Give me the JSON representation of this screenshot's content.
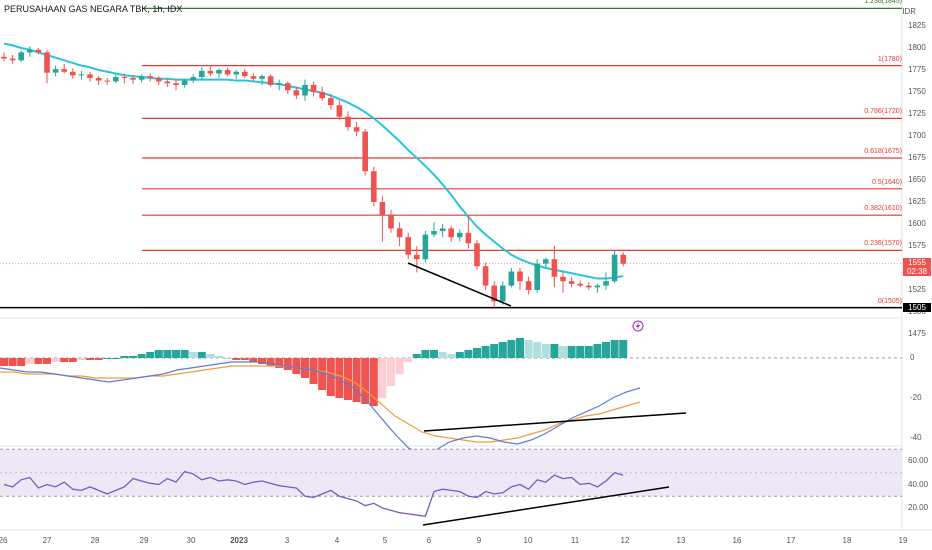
{
  "header": {
    "title": "PERUSAHAAN GAS NEGARA TBK, 1h, IDX"
  },
  "price_axis": {
    "currency": "IDR",
    "ticks": [
      "1825",
      "1800",
      "1775",
      "1750",
      "1725",
      "1700",
      "1675",
      "1650",
      "1625",
      "1600",
      "1575",
      "1550",
      "1525",
      "1500",
      "1475"
    ]
  },
  "fib_levels": [
    {
      "label": "1.236(1845)",
      "price": 1845
    },
    {
      "label": "1(1780)",
      "price": 1780
    },
    {
      "label": "0.786(1720)",
      "price": 1720
    },
    {
      "label": "0.618(1675)",
      "price": 1675
    },
    {
      "label": "0.5(1640)",
      "price": 1640
    },
    {
      "label": "0.382(1610)",
      "price": 1610
    },
    {
      "label": "0.236(1570)",
      "price": 1570
    },
    {
      "label": "0(1505)",
      "price": 1505
    }
  ],
  "last_price": {
    "value": "1555",
    "countdown": "02:38",
    "color": "#ef5350"
  },
  "support_tag": "1505",
  "macd_axis": {
    "ticks": [
      "0",
      "-20",
      "-40"
    ]
  },
  "rsi_axis": {
    "ticks": [
      "60.00",
      "40.00",
      "20.00"
    ]
  },
  "time_axis": {
    "ticks": [
      "26",
      "27",
      "28",
      "29",
      "30",
      "2023",
      "3",
      "4",
      "5",
      "6",
      "9",
      "10",
      "11",
      "12",
      "13",
      "16",
      "17",
      "18",
      "19"
    ]
  },
  "colors": {
    "up": "#26a69a",
    "down": "#ef5350",
    "ma": "#26c6da",
    "fib": "#e53935",
    "macd": "#5b7bd5",
    "signal": "#f39c3c",
    "rsi": "#7e57c2",
    "rsi_band": "#ede7f6"
  },
  "icons": {
    "alert": "lightning-icon"
  },
  "chart_data": {
    "type": "candlestick",
    "title": "PERUSAHAAN GAS NEGARA TBK, 1h, IDX",
    "ylim": [
      1470,
      1850
    ],
    "candles": [
      [
        1790,
        1795,
        1785,
        1788
      ],
      [
        1788,
        1792,
        1782,
        1786
      ],
      [
        1786,
        1797,
        1784,
        1795
      ],
      [
        1795,
        1802,
        1790,
        1798
      ],
      [
        1798,
        1800,
        1793,
        1795
      ],
      [
        1795,
        1798,
        1760,
        1772
      ],
      [
        1772,
        1780,
        1768,
        1776
      ],
      [
        1776,
        1782,
        1771,
        1773
      ],
      [
        1773,
        1777,
        1765,
        1769
      ],
      [
        1769,
        1774,
        1764,
        1770
      ],
      [
        1770,
        1773,
        1762,
        1766
      ],
      [
        1766,
        1768,
        1758,
        1763
      ],
      [
        1763,
        1766,
        1758,
        1762
      ],
      [
        1762,
        1770,
        1760,
        1767
      ],
      [
        1767,
        1771,
        1760,
        1766
      ],
      [
        1766,
        1768,
        1759,
        1764
      ],
      [
        1764,
        1770,
        1761,
        1768
      ],
      [
        1768,
        1771,
        1762,
        1766
      ],
      [
        1766,
        1768,
        1758,
        1762
      ],
      [
        1762,
        1765,
        1756,
        1760
      ],
      [
        1760,
        1764,
        1752,
        1758
      ],
      [
        1758,
        1765,
        1755,
        1763
      ],
      [
        1763,
        1770,
        1760,
        1767
      ],
      [
        1767,
        1778,
        1763,
        1774
      ],
      [
        1774,
        1780,
        1768,
        1771
      ],
      [
        1771,
        1777,
        1766,
        1775
      ],
      [
        1775,
        1778,
        1768,
        1770
      ],
      [
        1770,
        1775,
        1765,
        1773
      ],
      [
        1773,
        1776,
        1766,
        1768
      ],
      [
        1768,
        1772,
        1762,
        1765
      ],
      [
        1765,
        1770,
        1758,
        1768
      ],
      [
        1768,
        1770,
        1756,
        1758
      ],
      [
        1758,
        1764,
        1752,
        1760
      ],
      [
        1760,
        1762,
        1748,
        1752
      ],
      [
        1752,
        1756,
        1742,
        1746
      ],
      [
        1746,
        1764,
        1740,
        1758
      ],
      [
        1758,
        1762,
        1745,
        1750
      ],
      [
        1750,
        1756,
        1740,
        1743
      ],
      [
        1743,
        1748,
        1730,
        1735
      ],
      [
        1735,
        1740,
        1718,
        1722
      ],
      [
        1722,
        1728,
        1706,
        1710
      ],
      [
        1710,
        1716,
        1700,
        1705
      ],
      [
        1705,
        1708,
        1655,
        1660
      ],
      [
        1660,
        1665,
        1620,
        1625
      ],
      [
        1625,
        1632,
        1580,
        1610
      ],
      [
        1610,
        1616,
        1590,
        1595
      ],
      [
        1595,
        1602,
        1575,
        1585
      ],
      [
        1585,
        1590,
        1560,
        1565
      ],
      [
        1565,
        1575,
        1545,
        1560
      ],
      [
        1560,
        1592,
        1556,
        1588
      ],
      [
        1588,
        1602,
        1585,
        1592
      ],
      [
        1592,
        1600,
        1585,
        1595
      ],
      [
        1595,
        1598,
        1580,
        1585
      ],
      [
        1585,
        1594,
        1580,
        1590
      ],
      [
        1590,
        1610,
        1572,
        1578
      ],
      [
        1578,
        1582,
        1548,
        1552
      ],
      [
        1552,
        1556,
        1525,
        1530
      ],
      [
        1530,
        1535,
        1505,
        1512
      ],
      [
        1512,
        1535,
        1508,
        1530
      ],
      [
        1530,
        1550,
        1528,
        1546
      ],
      [
        1546,
        1550,
        1525,
        1535
      ],
      [
        1535,
        1540,
        1520,
        1525
      ],
      [
        1525,
        1560,
        1522,
        1555
      ],
      [
        1555,
        1562,
        1550,
        1560
      ],
      [
        1560,
        1575,
        1528,
        1540
      ],
      [
        1540,
        1545,
        1522,
        1535
      ],
      [
        1535,
        1540,
        1528,
        1532
      ],
      [
        1532,
        1536,
        1528,
        1530
      ],
      [
        1530,
        1534,
        1525,
        1528
      ],
      [
        1528,
        1532,
        1522,
        1530
      ],
      [
        1530,
        1545,
        1525,
        1535
      ],
      [
        1535,
        1570,
        1533,
        1565
      ],
      [
        1565,
        1568,
        1552,
        1555
      ]
    ],
    "ma": [
      1805,
      1803,
      1800,
      1798,
      1795,
      1792,
      1789,
      1786,
      1783,
      1780,
      1778,
      1775,
      1773,
      1771,
      1769,
      1768,
      1767,
      1766,
      1765,
      1765,
      1764,
      1764,
      1764,
      1764,
      1764,
      1764,
      1764,
      1763,
      1763,
      1762,
      1761,
      1760,
      1759,
      1757,
      1755,
      1753,
      1751,
      1749,
      1746,
      1742,
      1738,
      1733,
      1727,
      1720,
      1712,
      1703,
      1694,
      1684,
      1675,
      1666,
      1656,
      1645,
      1633,
      1620,
      1608,
      1597,
      1588,
      1580,
      1572,
      1565,
      1560,
      1556,
      1553,
      1550,
      1548,
      1546,
      1544,
      1542,
      1540,
      1538,
      1538,
      1539,
      1541
    ],
    "macd_hist": [
      -4,
      -4,
      -4,
      -3,
      -3,
      -3,
      -2,
      -2,
      -2,
      -1,
      -1,
      -1,
      0,
      0,
      1,
      1,
      2,
      3,
      4,
      4,
      4,
      4,
      3,
      3,
      2,
      1,
      0,
      -1,
      -1,
      -2,
      -3,
      -4,
      -5,
      -6,
      -8,
      -10,
      -13,
      -16,
      -19,
      -20,
      -21,
      -22,
      -23,
      -24,
      -20,
      -14,
      -8,
      -2,
      2,
      4,
      4,
      3,
      2,
      3,
      4,
      5,
      6,
      7,
      8,
      9,
      10,
      9,
      8,
      7,
      7,
      6,
      6,
      6,
      6,
      7,
      8,
      9,
      9
    ],
    "macd_line": [
      -5,
      -6,
      -7,
      -7,
      -8,
      -9,
      -10,
      -11,
      -12,
      -11,
      -10,
      -9,
      -8,
      -6,
      -5,
      -4,
      -3,
      -2,
      -2,
      -2,
      -3,
      -4,
      -5,
      -6,
      -8,
      -11,
      -15,
      -22,
      -30,
      -38,
      -45,
      -48,
      -46,
      -42,
      -40,
      -39,
      -40,
      -42,
      -43,
      -41,
      -38,
      -34,
      -30,
      -27,
      -24,
      -20,
      -17,
      -15
    ],
    "signal_line": [
      -7,
      -7,
      -8,
      -8,
      -8,
      -9,
      -9,
      -10,
      -10,
      -10,
      -10,
      -9,
      -9,
      -8,
      -7,
      -6,
      -5,
      -4,
      -4,
      -4,
      -4,
      -4,
      -5,
      -6,
      -7,
      -9,
      -12,
      -17,
      -23,
      -29,
      -33,
      -37,
      -39,
      -40,
      -41,
      -42,
      -42,
      -41,
      -40,
      -38,
      -36,
      -33,
      -31,
      -29,
      -28,
      -26,
      -24,
      -22
    ],
    "rsi": [
      40,
      38,
      44,
      46,
      37,
      40,
      38,
      42,
      36,
      35,
      38,
      35,
      32,
      35,
      38,
      45,
      43,
      41,
      40,
      45,
      42,
      51,
      49,
      44,
      46,
      43,
      44,
      43,
      40,
      42,
      43,
      41,
      39,
      38,
      37,
      30,
      29,
      32,
      35,
      30,
      28,
      26,
      22,
      24,
      20,
      18,
      16,
      15,
      14,
      13,
      34,
      36,
      35,
      34,
      30,
      29,
      34,
      32,
      33,
      38,
      40,
      36,
      44,
      42,
      48,
      45,
      46,
      40,
      41,
      38,
      43,
      50,
      48
    ],
    "rsi_band": [
      30,
      70
    ]
  }
}
